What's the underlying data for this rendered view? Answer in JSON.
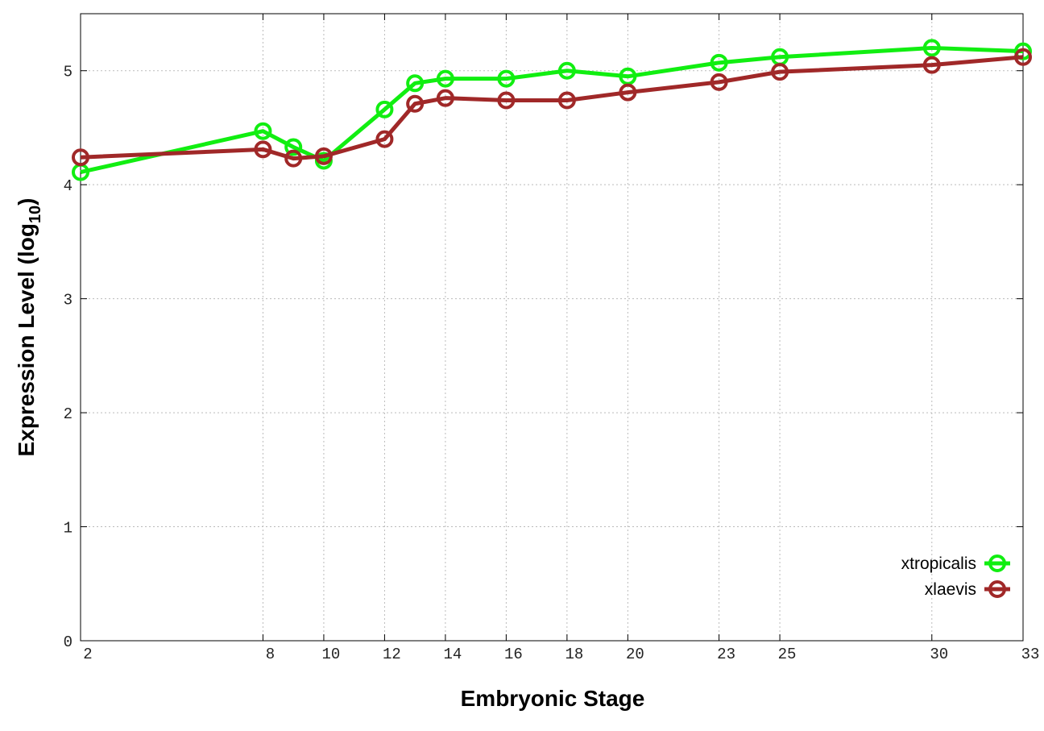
{
  "chart_data": {
    "type": "line",
    "x_label": "Embryonic Stage",
    "y_label": {
      "text": "Expression Level (log",
      "subscript": "10",
      "suffix": ")"
    },
    "x": [
      2,
      8,
      9,
      10,
      12,
      13,
      14,
      16,
      18,
      20,
      23,
      25,
      30,
      33
    ],
    "series": [
      {
        "name": "xtropicalis",
        "color": "#11ee11",
        "values": [
          4.11,
          4.47,
          4.33,
          4.21,
          4.66,
          4.89,
          4.93,
          4.93,
          5.0,
          4.95,
          5.07,
          5.12,
          5.2,
          5.17
        ]
      },
      {
        "name": "xlaevis",
        "color": "#a02828",
        "values": [
          4.24,
          4.31,
          4.23,
          4.25,
          4.4,
          4.71,
          4.76,
          4.74,
          4.74,
          4.81,
          4.9,
          4.99,
          5.05,
          5.12
        ]
      }
    ],
    "xlim": [
      2,
      33
    ],
    "xticks": [
      2,
      8,
      10,
      12,
      14,
      16,
      18,
      20,
      23,
      25,
      30,
      33
    ],
    "ylim": [
      0,
      5.5
    ],
    "yticks": [
      0,
      1,
      2,
      3,
      4,
      5
    ],
    "grid": true,
    "legend": "lower-right"
  }
}
